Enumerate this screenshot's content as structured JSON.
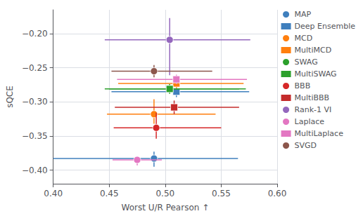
{
  "chart_data": {
    "type": "scatter",
    "xlabel": "Worst U/R Pearson ↑",
    "ylabel": "sQCE",
    "xlim": [
      0.4,
      0.6
    ],
    "ylim": [
      -0.42,
      -0.165
    ],
    "xticks": [
      {
        "value": 0.4,
        "label": "0.40"
      },
      0.45,
      {
        "value": 0.5,
        "label": "0.50"
      },
      0.55,
      {
        "value": 0.6,
        "label": "0.60"
      }
    ],
    "yticks": [
      {
        "value": -0.4,
        "label": "−0.40"
      },
      {
        "value": -0.35,
        "label": "−0.35"
      },
      {
        "value": -0.3,
        "label": "−0.30"
      },
      {
        "value": -0.25,
        "label": "−0.25"
      },
      {
        "value": -0.2,
        "label": "−0.20"
      }
    ],
    "grid": true,
    "legend": "right",
    "series": [
      {
        "name": "MAP",
        "marker": "circle",
        "color": "#3f7fbd",
        "x": [
          0.49
        ],
        "y": [
          -0.383
        ],
        "xerr": [
          [
            0.09,
            0.075
          ]
        ],
        "yerr": [
          [
            0.012,
            0.01
          ]
        ]
      },
      {
        "name": "Deep Ensemble",
        "marker": "square",
        "color": "#3f7fbd",
        "x": [
          0.51
        ],
        "y": [
          -0.285
        ],
        "xerr": [
          [
            0.058,
            0.065
          ]
        ],
        "yerr": [
          [
            0.008,
            0.008
          ]
        ]
      },
      {
        "name": "MCD",
        "marker": "circle",
        "color": "#ff7f0e",
        "x": [
          0.49
        ],
        "y": [
          -0.318
        ],
        "xerr": [
          [
            0.042,
            0.055
          ]
        ],
        "yerr": [
          [
            0.014,
            0.022
          ]
        ]
      },
      {
        "name": "MultiMCD",
        "marker": "square",
        "color": "#ff7f0e",
        "x": [
          0.51
        ],
        "y": [
          -0.273
        ],
        "xerr": [
          [
            0.052,
            0.06
          ]
        ],
        "yerr": [
          [
            0.007,
            0.007
          ]
        ]
      },
      {
        "name": "SWAG",
        "marker": "circle",
        "color": "#2ca02c",
        "x": [
          0.504
        ],
        "y": [
          -0.281
        ],
        "xerr": [
          [
            0.058,
            0.068
          ]
        ],
        "yerr": [
          [
            0.007,
            0.007
          ]
        ]
      },
      {
        "name": "MultiSWAG",
        "marker": "square",
        "color": "#2ca02c",
        "x": [
          0.504
        ],
        "y": [
          -0.281
        ],
        "xerr": [
          [
            0.054,
            0.062
          ]
        ],
        "yerr": [
          [
            0.007,
            0.007
          ]
        ]
      },
      {
        "name": "BBB",
        "marker": "circle",
        "color": "#d62728",
        "x": [
          0.492
        ],
        "y": [
          -0.338
        ],
        "xerr": [
          [
            0.038,
            0.058
          ]
        ],
        "yerr": [
          [
            0.016,
            0.022
          ]
        ]
      },
      {
        "name": "MultiBBB",
        "marker": "square",
        "color": "#c42b2b",
        "x": [
          0.508
        ],
        "y": [
          -0.308
        ],
        "xerr": [
          [
            0.053,
            0.058
          ]
        ],
        "yerr": [
          [
            0.01,
            0.01
          ]
        ]
      },
      {
        "name": "Rank-1 VI",
        "marker": "circle",
        "color": "#9467bd",
        "x": [
          0.504
        ],
        "y": [
          -0.209
        ],
        "xerr": [
          [
            0.058,
            0.072
          ]
        ],
        "yerr": [
          [
            0.052,
            0.032
          ]
        ]
      },
      {
        "name": "Laplace",
        "marker": "circle",
        "color": "#e377c2",
        "x": [
          0.475
        ],
        "y": [
          -0.385
        ],
        "xerr": [
          [
            0.022,
            0.022
          ]
        ],
        "yerr": [
          [
            0.008,
            0.004
          ]
        ]
      },
      {
        "name": "MultiLaplace",
        "marker": "square",
        "color": "#e377c2",
        "x": [
          0.51
        ],
        "y": [
          -0.267
        ],
        "xerr": [
          [
            0.053,
            0.063
          ]
        ],
        "yerr": [
          [
            0.007,
            0.007
          ]
        ]
      },
      {
        "name": "SVGD",
        "marker": "circle",
        "color": "#8c564b",
        "x": [
          0.49
        ],
        "y": [
          -0.255
        ],
        "xerr": [
          [
            0.038,
            0.052
          ]
        ],
        "yerr": [
          [
            0.009,
            0.009
          ]
        ]
      }
    ]
  }
}
